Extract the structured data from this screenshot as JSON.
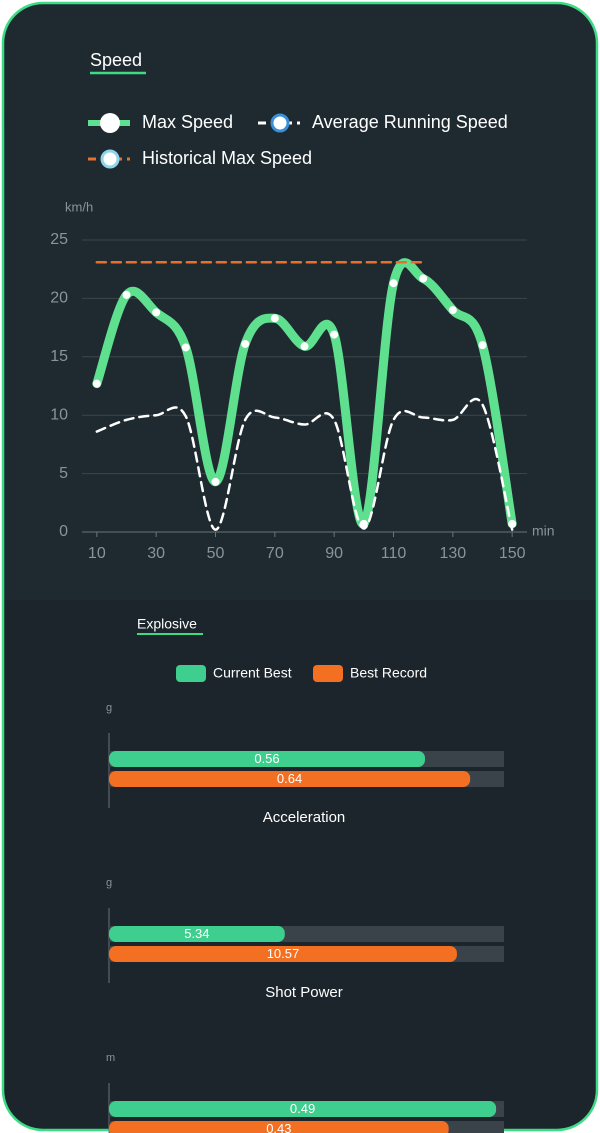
{
  "chart_data": [
    {
      "type": "line",
      "title": "Speed",
      "y_label": "km/h",
      "x_label": "min",
      "x": [
        10,
        20,
        30,
        40,
        50,
        60,
        70,
        80,
        90,
        100,
        110,
        120,
        130,
        140,
        150
      ],
      "series": [
        {
          "name": "Max Speed",
          "color": "#5fe08f",
          "marker_edge": "#ffffff",
          "dash": false,
          "values": [
            12.7,
            20.3,
            18.8,
            15.8,
            4.3,
            16.1,
            18.3,
            15.9,
            16.9,
            0.7,
            21.3,
            21.7,
            19.0,
            16.0,
            0.7
          ]
        },
        {
          "name": "Average Running Speed",
          "color": "#ffffff",
          "marker_edge": "#3a8fd8",
          "dash": true,
          "values": [
            8.6,
            9.6,
            10.0,
            9.9,
            0.2,
            9.6,
            9.8,
            9.2,
            9.6,
            0.3,
            9.6,
            9.8,
            9.6,
            10.9,
            0.2
          ]
        },
        {
          "name": "Historical Max Speed",
          "color": "#e8702a",
          "marker_edge": "#8fd3ec",
          "dash": true,
          "values": [
            23.1,
            23.1,
            23.1,
            23.1,
            23.1,
            23.1,
            23.1,
            23.1,
            23.1,
            23.1,
            23.1,
            23.1,
            null,
            null,
            null
          ]
        }
      ],
      "xlim": [
        5,
        155
      ],
      "xticks": [
        10,
        30,
        50,
        70,
        90,
        110,
        130,
        150
      ],
      "ylim": [
        0,
        25
      ],
      "yticks": [
        0,
        5,
        10,
        15,
        20,
        25
      ],
      "grid": true
    },
    {
      "type": "hbar",
      "title": "Explosive",
      "categories": [
        "Acceleration",
        "Shot Power",
        null
      ],
      "units": [
        "g",
        "g",
        "m"
      ],
      "xlims": [
        [
          0,
          0.7
        ],
        [
          0,
          12
        ],
        [
          0,
          0.5
        ]
      ],
      "track_color": "#3a424a",
      "series": [
        {
          "name": "Current Best",
          "color": "#3ecf8e",
          "values": [
            0.56,
            5.34,
            0.49
          ]
        },
        {
          "name": "Best Record",
          "color": "#f36f21",
          "values": [
            0.64,
            10.57,
            0.43
          ]
        }
      ]
    }
  ]
}
